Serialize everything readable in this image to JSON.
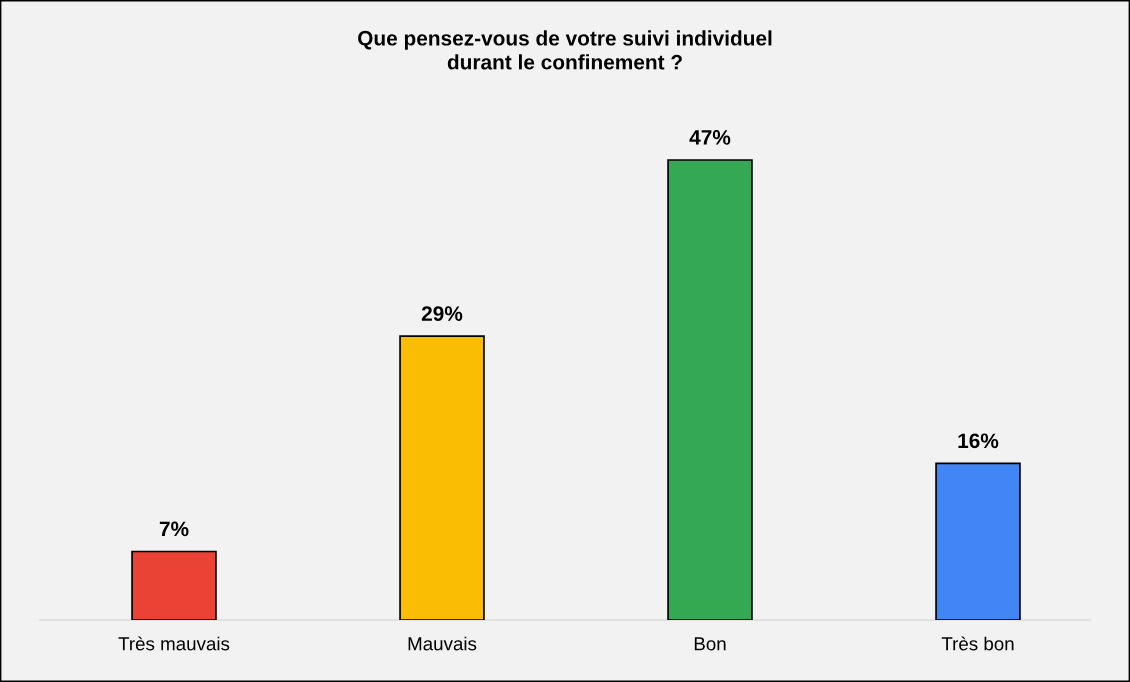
{
  "chart_data": {
    "type": "bar",
    "title": "Que pensez-vous de votre suivi individuel\ndurant le confinement ?",
    "categories": [
      "Très mauvais",
      "Mauvais",
      "Bon",
      "Très bon"
    ],
    "values": [
      7,
      29,
      47,
      16
    ],
    "colors": [
      "#ea4335",
      "#fbbc04",
      "#34a853",
      "#4285f4"
    ],
    "value_labels": [
      "7%",
      "29%",
      "47%",
      "16%"
    ]
  }
}
